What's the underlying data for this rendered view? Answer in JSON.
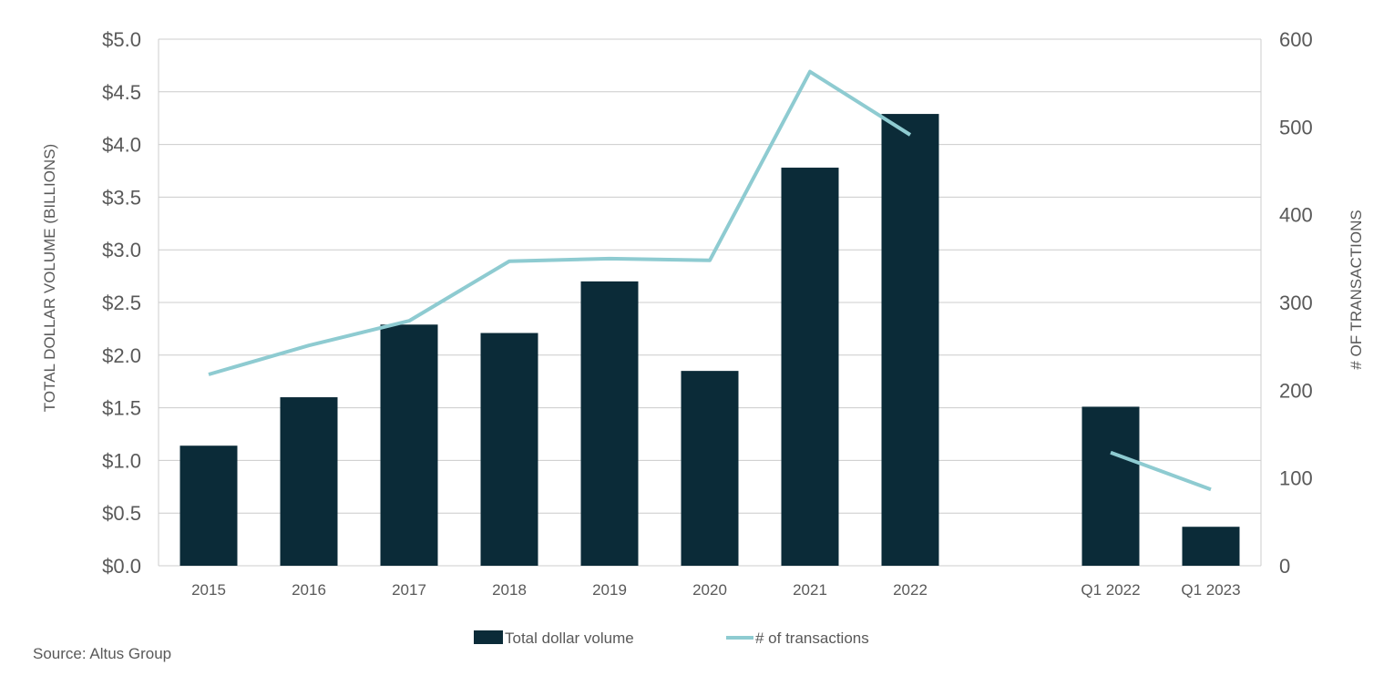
{
  "chart_data": {
    "type": "bar",
    "categories": [
      "2015",
      "2016",
      "2017",
      "2018",
      "2019",
      "2020",
      "2021",
      "2022",
      "",
      "Q1 2022",
      "Q1 2023"
    ],
    "series": [
      {
        "name": "Total dollar volume",
        "type": "bar",
        "axis": "left",
        "values": [
          1.14,
          1.6,
          2.29,
          2.21,
          2.7,
          1.85,
          3.78,
          4.29,
          null,
          1.51,
          0.37
        ]
      },
      {
        "name": "# of transactions",
        "type": "line",
        "axis": "right",
        "values": [
          218,
          251,
          279,
          347,
          350,
          348,
          563,
          491,
          null,
          129,
          87
        ]
      }
    ],
    "ylabel": "TOTAL DOLLAR VOLUME (BILLIONS)",
    "y2label": "# OF TRANSACTIONS",
    "ylim": [
      0,
      5
    ],
    "y2lim": [
      0,
      600
    ],
    "yticks": [
      "$0.0",
      "$0.5",
      "$1.0",
      "$1.5",
      "$2.0",
      "$2.5",
      "$3.0",
      "$3.5",
      "$4.0",
      "$4.5",
      "$5.0"
    ],
    "y2ticks": [
      "0",
      "100",
      "200",
      "300",
      "400",
      "500",
      "600"
    ],
    "grid": true,
    "legend_position": "bottom",
    "colors": {
      "bar": "#0b2b38",
      "line": "#8ecbd1",
      "grid": "#cccccc"
    }
  },
  "source": "Source:  Altus Group"
}
